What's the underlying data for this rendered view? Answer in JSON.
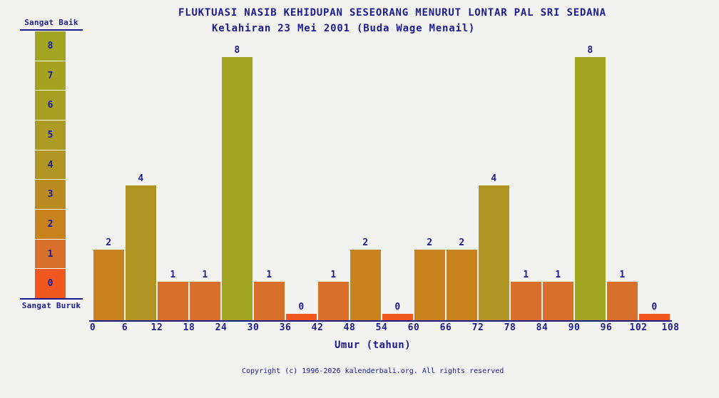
{
  "chart_data": {
    "type": "bar",
    "title": "FLUKTUASI NASIB KEHIDUPAN SESEORANG MENURUT LONTAR PAL SRI SEDANA",
    "subtitle": "Kelahiran 23 Mei 2001 (Buda Wage Menail)",
    "xlabel": "Umur (tahun)",
    "ylabel": "",
    "ylim": [
      0,
      8
    ],
    "grid": false,
    "legend_position": "left",
    "x_ticks": [
      0,
      6,
      12,
      18,
      24,
      30,
      36,
      42,
      48,
      54,
      60,
      66,
      72,
      78,
      84,
      90,
      96,
      102,
      108
    ],
    "categories": [
      "0-6",
      "6-12",
      "12-18",
      "18-24",
      "24-30",
      "30-36",
      "36-42",
      "42-48",
      "48-54",
      "54-60",
      "60-66",
      "66-72",
      "72-78",
      "78-84",
      "84-90",
      "90-96",
      "96-102",
      "102-108"
    ],
    "values": [
      2,
      4,
      1,
      1,
      8,
      1,
      0,
      1,
      2,
      0,
      2,
      2,
      4,
      1,
      1,
      8,
      1,
      0
    ],
    "value_colors": {
      "0": "#f1581f",
      "1": "#d7702a",
      "2": "#c8821c",
      "3": "#b88c20",
      "4": "#b09522",
      "5": "#ac9b22",
      "6": "#a8a022",
      "7": "#a5a222",
      "8": "#a2a521"
    }
  },
  "legend": {
    "top_label": "Sangat Baik",
    "bottom_label": "Sangat Buruk",
    "scale_values": [
      8,
      7,
      6,
      5,
      4,
      3,
      2,
      1,
      0
    ]
  },
  "footer": {
    "copyright": "Copyright (c) 1996-2026 kalenderbali.org. All rights reserved"
  },
  "colors": {
    "text_navy": "#1b1b8e",
    "background": "#f2f2f1",
    "axis": "#1b1b8e",
    "gap_white": "#ffffff"
  }
}
